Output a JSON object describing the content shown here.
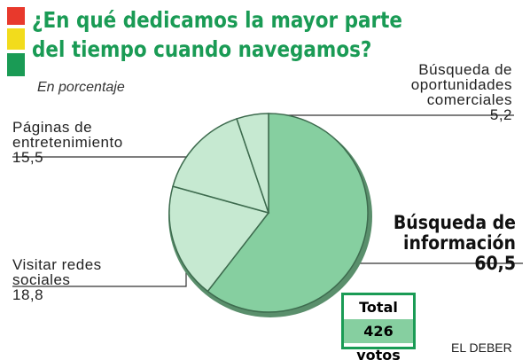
{
  "chart_data": {
    "type": "pie",
    "title": [
      "¿En qué dedicamos la mayor parte",
      "del tiempo cuando navegamos?"
    ],
    "subtitle": "En porcentaje",
    "categories": [
      "Búsqueda de\ninformación",
      "Visitar redes\nsociales",
      "Páginas de\nentretenimiento",
      "Búsqueda de\noportunidades\ncomerciales"
    ],
    "values": [
      60.5,
      18.8,
      15.5,
      5.2
    ],
    "value_labels": [
      "60,5",
      "18,8",
      "15,5",
      "5,2"
    ],
    "colors": [
      "#86cfa0",
      "#c6e9d1",
      "#c6e9d1",
      "#c6e9d1"
    ],
    "total_label": "Total",
    "total_text": "426 votos",
    "source": "EL DEBER"
  }
}
